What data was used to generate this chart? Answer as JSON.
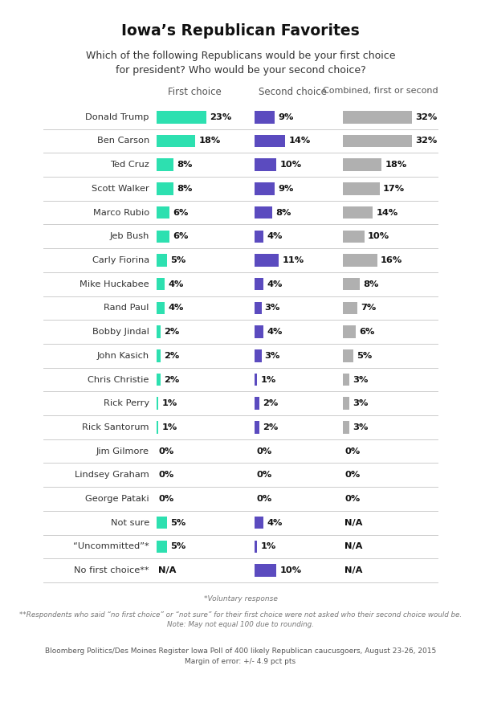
{
  "title": "Iowa’s Republican Favorites",
  "subtitle": "Which of the following Republicans would be your first choice\nfor president? Who would be your second choice?",
  "col_headers": [
    "First choice",
    "Second choice",
    "Combined, first or second"
  ],
  "candidates": [
    "Donald Trump",
    "Ben Carson",
    "Ted Cruz",
    "Scott Walker",
    "Marco Rubio",
    "Jeb Bush",
    "Carly Fiorina",
    "Mike Huckabee",
    "Rand Paul",
    "Bobby Jindal",
    "John Kasich",
    "Chris Christie",
    "Rick Perry",
    "Rick Santorum",
    "Jim Gilmore",
    "Lindsey Graham",
    "George Pataki",
    "Not sure",
    "“Uncommitted”*",
    "No first choice**"
  ],
  "first_choice": [
    23,
    18,
    8,
    8,
    6,
    6,
    5,
    4,
    4,
    2,
    2,
    2,
    1,
    1,
    0,
    0,
    0,
    5,
    5,
    null
  ],
  "first_choice_labels": [
    "23%",
    "18%",
    "8%",
    "8%",
    "6%",
    "6%",
    "5%",
    "4%",
    "4%",
    "2%",
    "2%",
    "2%",
    "1%",
    "1%",
    "0%",
    "0%",
    "0%",
    "5%",
    "5%",
    "N/A"
  ],
  "second_choice": [
    9,
    14,
    10,
    9,
    8,
    4,
    11,
    4,
    3,
    4,
    3,
    1,
    2,
    2,
    0,
    0,
    0,
    4,
    1,
    10
  ],
  "second_choice_labels": [
    "9%",
    "14%",
    "10%",
    "9%",
    "8%",
    "4%",
    "11%",
    "4%",
    "3%",
    "4%",
    "3%",
    "1%",
    "2%",
    "2%",
    "0%",
    "0%",
    "0%",
    "4%",
    "1%",
    "10%"
  ],
  "combined": [
    32,
    32,
    18,
    17,
    14,
    10,
    16,
    8,
    7,
    6,
    5,
    3,
    3,
    3,
    0,
    0,
    0,
    null,
    null,
    null
  ],
  "combined_labels": [
    "32%",
    "32%",
    "18%",
    "17%",
    "14%",
    "10%",
    "16%",
    "8%",
    "7%",
    "6%",
    "5%",
    "3%",
    "3%",
    "3%",
    "0%",
    "0%",
    "0%",
    "N/A",
    "N/A",
    "N/A"
  ],
  "first_color": "#2de0b0",
  "second_color": "#5b4bbf",
  "combined_color": "#b0b0b0",
  "bg_color": "#ffffff",
  "divider_color": "#cccccc",
  "text_color": "#333333",
  "footnote1": "*Voluntary response",
  "footnote2": "**Respondents who said “no first choice” or “not sure” for their first choice were not asked who their second choice would be.\nNote: May not equal 100 due to rounding.",
  "footnote3": "Bloomberg Politics/Des Moines Register Iowa Poll of 400 likely Republican caucusgoers, August 23-26, 2015\nMargin of error: +/- 4.9 pct pts",
  "max_bar": 35
}
